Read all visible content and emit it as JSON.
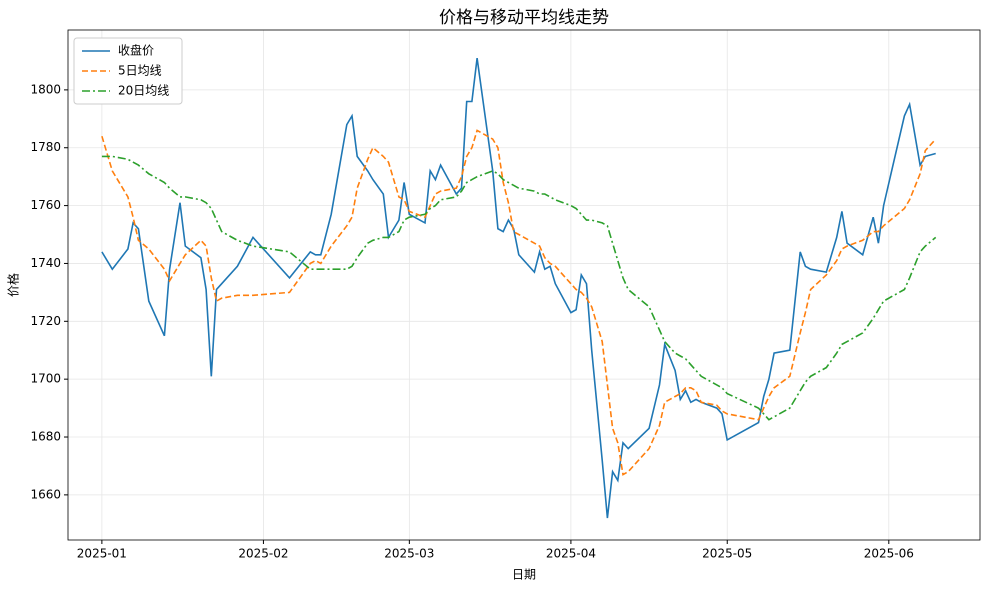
{
  "chart_data": {
    "type": "line",
    "title": "价格与移动平均线走势",
    "x_label": "日期",
    "y_label": "价格",
    "x": [
      0,
      2,
      5,
      6,
      7,
      9,
      12,
      13,
      15,
      16,
      19,
      20,
      21,
      22,
      23,
      26,
      29,
      36,
      40,
      41,
      42,
      44,
      47,
      48,
      49,
      51,
      52,
      54,
      55,
      57,
      58,
      59,
      62,
      63,
      64,
      65,
      68,
      69,
      70,
      71,
      72,
      75,
      76,
      77,
      78,
      79,
      80,
      83,
      84,
      85,
      86,
      87,
      90,
      91,
      92,
      93,
      94,
      96,
      97,
      98,
      99,
      100,
      101,
      105,
      107,
      108,
      110,
      111,
      112,
      113,
      114,
      115,
      118,
      119,
      120,
      126,
      127,
      128,
      129,
      132,
      134,
      135,
      136,
      139,
      141,
      142,
      143,
      146,
      148,
      149,
      150,
      154,
      155,
      157,
      158,
      160
    ],
    "series": [
      {
        "name": "收盘价",
        "color": "#1f77b4",
        "dash": "solid",
        "values": [
          1744,
          1738,
          1745,
          1754,
          1752,
          1727,
          1715,
          1738,
          1761,
          1746,
          1742,
          1731,
          1701,
          1731,
          1733,
          1739,
          1749,
          1735,
          1744,
          1743,
          1743,
          1757,
          1788,
          1791,
          1777,
          1772,
          1769,
          1764,
          1749,
          1755,
          1768,
          1757,
          1754,
          1772,
          1769,
          1774,
          1764,
          1766,
          1796,
          1796,
          1811,
          1772,
          1752,
          1751,
          1755,
          1752,
          1743,
          1737,
          1744,
          1738,
          1739,
          1733,
          1723,
          1724,
          1736,
          1733,
          1710,
          1672,
          1652,
          1668,
          1665,
          1678,
          1676,
          1683,
          1698,
          1712,
          1703,
          1693,
          1696,
          1692,
          1693,
          1692,
          1690,
          1688,
          1679,
          1685,
          1694,
          1700,
          1709,
          1710,
          1744,
          1739,
          1738,
          1737,
          1749,
          1758,
          1747,
          1743,
          1756,
          1747,
          1760,
          1791,
          1795,
          1774,
          1777,
          1778
        ]
      },
      {
        "name": "5日均线",
        "color": "#ff7f0e",
        "dash": "dashed",
        "values": [
          1784,
          1772,
          1763,
          1756,
          1748,
          1745,
          1738,
          1734,
          1740,
          1743,
          1748,
          1746,
          1735,
          1727,
          1728,
          1729,
          1729,
          1730,
          1740,
          1741,
          1740,
          1746,
          1753,
          1756,
          1766,
          1776,
          1780,
          1777,
          1775,
          1763,
          1762,
          1758,
          1756,
          1760,
          1764,
          1765,
          1766,
          1770,
          1777,
          1780,
          1786,
          1783,
          1780,
          1768,
          1761,
          1751,
          1750,
          1747,
          1746,
          1742,
          1740,
          1739,
          1733,
          1731,
          1730,
          1728,
          1725,
          1713,
          1698,
          1683,
          1678,
          1667,
          1668,
          1676,
          1684,
          1692,
          1694,
          1695,
          1697,
          1697,
          1696,
          1692,
          1691,
          1689,
          1688,
          1686,
          1690,
          1694,
          1697,
          1701,
          1716,
          1723,
          1731,
          1736,
          1741,
          1745,
          1746,
          1748,
          1751,
          1751,
          1753,
          1759,
          1762,
          1771,
          1779,
          1783
        ]
      },
      {
        "name": "20日均线",
        "color": "#2ca02c",
        "dash": "dashdot",
        "values": [
          1777,
          1777,
          1776,
          1775,
          1774,
          1771,
          1768,
          1766,
          1763,
          1763,
          1762,
          1761,
          1759,
          1755,
          1751,
          1748,
          1746,
          1744,
          1738,
          1738,
          1738,
          1738,
          1738,
          1739,
          1742,
          1747,
          1748,
          1749,
          1749,
          1751,
          1755,
          1756,
          1757,
          1759,
          1760,
          1762,
          1763,
          1765,
          1768,
          1769,
          1770,
          1772,
          1771,
          1769,
          1768,
          1767,
          1766,
          1765,
          1764,
          1764,
          1763,
          1762,
          1760,
          1759,
          1757,
          1755,
          1755,
          1754,
          1753,
          1747,
          1741,
          1735,
          1731,
          1725,
          1717,
          1713,
          1709,
          1708,
          1707,
          1705,
          1703,
          1701,
          1698,
          1697,
          1695,
          1690,
          1688,
          1686,
          1687,
          1690,
          1696,
          1699,
          1701,
          1704,
          1709,
          1712,
          1713,
          1716,
          1721,
          1724,
          1727,
          1731,
          1735,
          1744,
          1746,
          1749
        ]
      }
    ],
    "xlim": [
      -6.5,
      168.5
    ],
    "xticks": [
      {
        "value": 0,
        "label": "2025-01"
      },
      {
        "value": 31,
        "label": "2025-02"
      },
      {
        "value": 59,
        "label": "2025-03"
      },
      {
        "value": 90,
        "label": "2025-04"
      },
      {
        "value": 120,
        "label": "2025-05"
      },
      {
        "value": 151,
        "label": "2025-06"
      }
    ],
    "ylim": [
      1644.4,
      1820.7
    ],
    "yticks": [
      1660,
      1680,
      1700,
      1720,
      1740,
      1760,
      1780,
      1800
    ],
    "grid": true,
    "legend": "upper-left"
  }
}
